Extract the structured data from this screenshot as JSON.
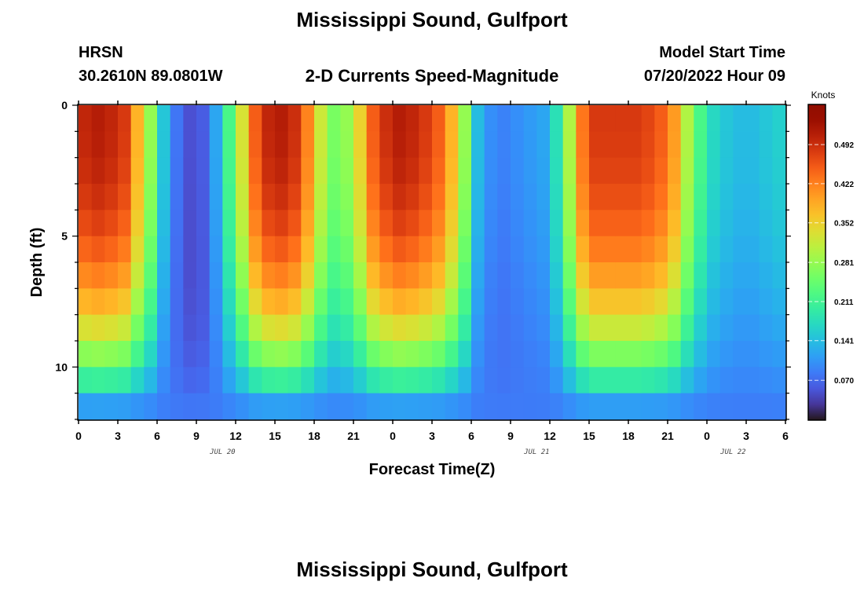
{
  "page": {
    "title_top": "Mississippi Sound, Gulfport",
    "title_bottom": "Mississippi Sound, Gulfport",
    "station": "HRSN",
    "coordinates": "30.2610N  89.0801W",
    "product": "2-D Currents Speed-Magnitude",
    "model_start_label": "Model Start Time",
    "model_start_value": "07/20/2022 Hour 09"
  },
  "chart_data": {
    "type": "heatmap",
    "title": "2-D Currents Speed-Magnitude",
    "xlabel": "Forecast Time(Z)",
    "ylabel": "Depth (ft)",
    "x_range_hours": [
      0,
      54
    ],
    "y_range_ft": [
      0,
      12
    ],
    "x_tick_hours": [
      0,
      3,
      6,
      9,
      12,
      15,
      18,
      21,
      24,
      27,
      30,
      33,
      36,
      39,
      42,
      45,
      48,
      51,
      54
    ],
    "x_tick_labels": [
      "0",
      "3",
      "6",
      "9",
      "12",
      "15",
      "18",
      "21",
      "0",
      "3",
      "6",
      "9",
      "12",
      "15",
      "18",
      "21",
      "0",
      "3",
      "6"
    ],
    "date_labels": [
      {
        "hour": 11,
        "text": "JUL 20"
      },
      {
        "hour": 35,
        "text": "JUL 21"
      },
      {
        "hour": 50,
        "text": "JUL 22"
      }
    ],
    "y_ticks": [
      0,
      5,
      10
    ],
    "y_tick_labels": [
      "0",
      "5",
      "10"
    ],
    "colorbar": {
      "title": "Knots",
      "min": 0.0,
      "max": 0.5625,
      "labels": [
        0.07,
        0.141,
        0.211,
        0.281,
        0.352,
        0.422,
        0.492
      ],
      "label_text": [
        "0.070",
        "0.141",
        "0.211",
        "0.281",
        "0.352",
        "0.422",
        "0.492"
      ],
      "colormap": "turbo"
    },
    "time_step_hours": 1,
    "depth_levels_ft": [
      0.5,
      1.5,
      2.5,
      3.5,
      4.5,
      5.5,
      6.5,
      7.5,
      8.5,
      9.5,
      10.5,
      11.5
    ],
    "surface_speed_knots": [
      0.5,
      0.51,
      0.5,
      0.48,
      0.38,
      0.28,
      0.15,
      0.08,
      0.05,
      0.06,
      0.12,
      0.22,
      0.33,
      0.45,
      0.5,
      0.51,
      0.49,
      0.42,
      0.32,
      0.26,
      0.28,
      0.35,
      0.45,
      0.49,
      0.51,
      0.5,
      0.48,
      0.45,
      0.38,
      0.28,
      0.14,
      0.1,
      0.09,
      0.1,
      0.11,
      0.12,
      0.18,
      0.3,
      0.43,
      0.48,
      0.48,
      0.48,
      0.48,
      0.47,
      0.45,
      0.4,
      0.3,
      0.22,
      0.17,
      0.15,
      0.14,
      0.14,
      0.15,
      0.16,
      0.17
    ],
    "speed_min_knots": 0.0,
    "speed_max_knots": 0.55
  }
}
